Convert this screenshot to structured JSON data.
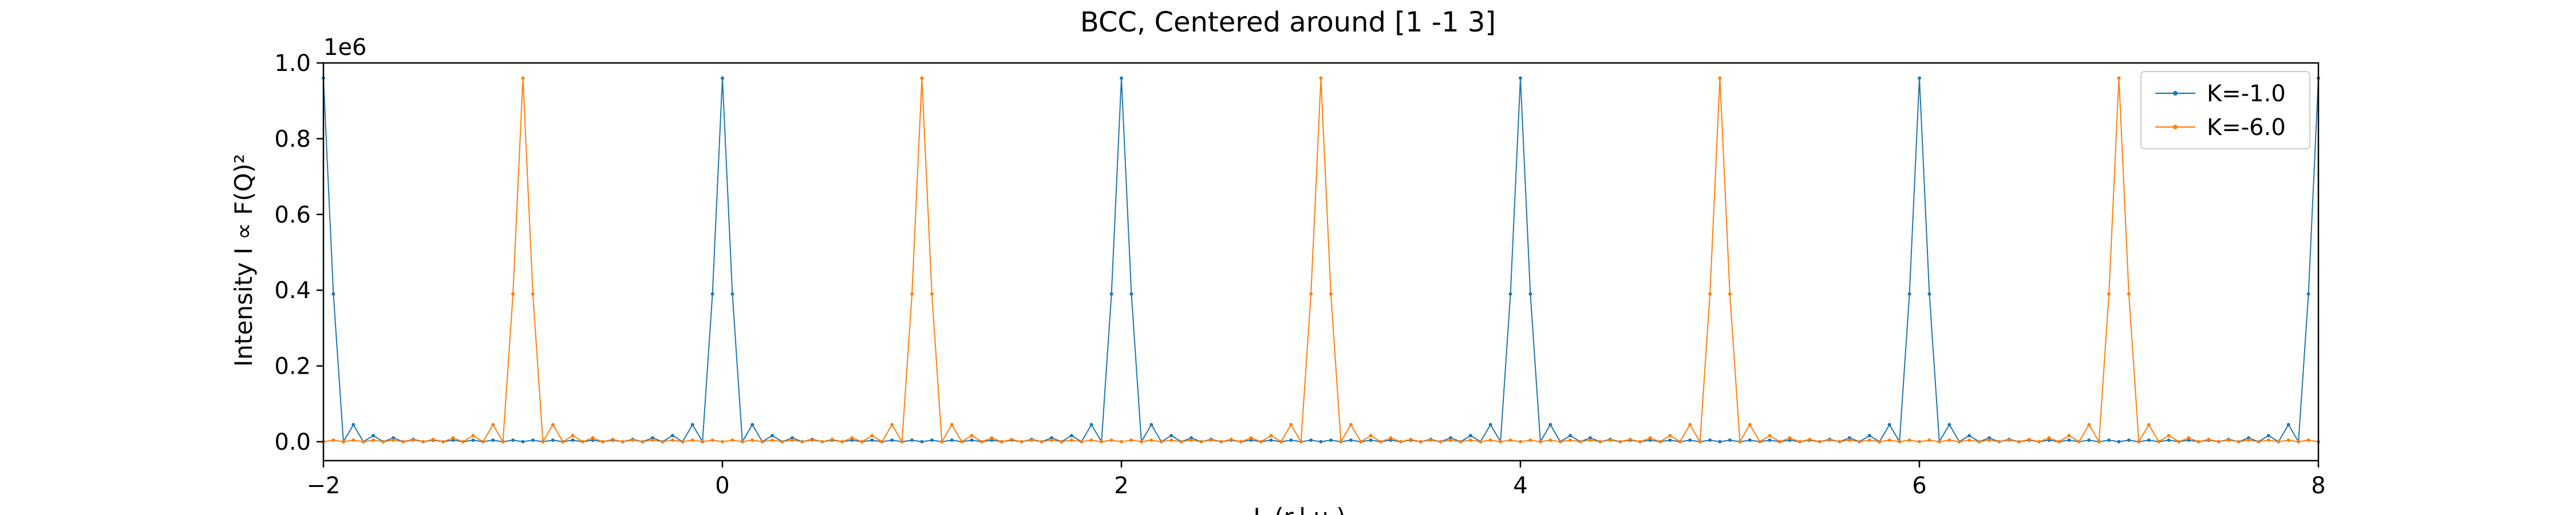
{
  "chart_data": {
    "type": "line",
    "title": "BCC, Centered around [1 -1 3]",
    "xlabel": "L (r.l.u.)",
    "ylabel": "Intensity I ∝ F(Q)²",
    "y_offset_label": "1e6",
    "xlim": [
      -2,
      8
    ],
    "ylim": [
      -0.05,
      1.0
    ],
    "x_ticks": [
      -2,
      0,
      2,
      4,
      6,
      8
    ],
    "x_tick_labels": [
      "−2",
      "0",
      "2",
      "4",
      "6",
      "8"
    ],
    "y_ticks": [
      0.0,
      0.2,
      0.4,
      0.6,
      0.8,
      1.0
    ],
    "y_tick_labels": [
      "0.0",
      "0.2",
      "0.4",
      "0.6",
      "0.8",
      "1.0"
    ],
    "legend_position": "upper right",
    "grid": false,
    "series": [
      {
        "name": "K=-1.0",
        "color": "#1f77b4",
        "peaks_at_L": [
          -2,
          0,
          2,
          4,
          6,
          8
        ],
        "peak_value": 0.96,
        "shoulder_value": 0.39,
        "sidelobe_values": [
          0.045,
          0.016,
          0.01,
          0.006
        ],
        "sampling_step": 0.05
      },
      {
        "name": "K=-6.0",
        "color": "#ff7f0e",
        "peaks_at_L": [
          -1,
          1,
          3,
          5,
          7
        ],
        "peak_value": 0.96,
        "shoulder_value": 0.39,
        "sidelobe_values": [
          0.045,
          0.016,
          0.01,
          0.006
        ],
        "sampling_step": 0.05
      }
    ]
  }
}
